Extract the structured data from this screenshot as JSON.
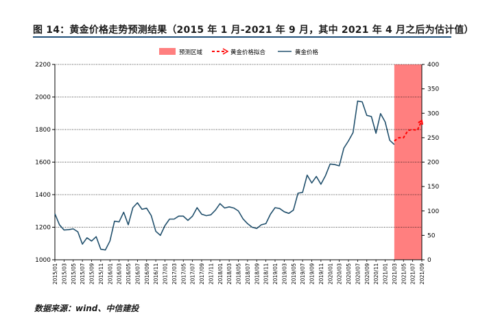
{
  "title": "图 14：黄金价格走势预测结果（2015 年 1 月-2021 年 9 月，其中 2021 年 4 月之后为估计值）",
  "source": "数据来源：wind、中信建投",
  "colors": {
    "series_line": "#1f4e6b",
    "forecast_line": "#ff0000",
    "forecast_region": "#ff7f7f",
    "title_rule": "#1f4e79"
  },
  "chart_data": {
    "type": "line",
    "legend": [
      "预测区域",
      "黄金价格拟合",
      "黄金价格"
    ],
    "legend_position": "top",
    "y_left": {
      "min": 1000,
      "max": 2200,
      "ticks": [
        1000,
        1200,
        1400,
        1600,
        1800,
        2000,
        2200
      ]
    },
    "y_right": {
      "min": 0,
      "max": 400,
      "ticks": [
        0,
        50,
        100,
        150,
        200,
        250,
        300,
        350,
        400
      ]
    },
    "grid": "dotted horizontal",
    "x_tick_labels": [
      "2015/01",
      "2015/03",
      "2015/05",
      "2015/07",
      "2015/09",
      "2015/11",
      "2016/01",
      "2016/03",
      "2016/05",
      "2016/07",
      "2016/09",
      "2016/11",
      "2017/01",
      "2017/03",
      "2017/05",
      "2017/07",
      "2017/09",
      "2017/11",
      "2018/01",
      "2018/03",
      "2018/05",
      "2018/07",
      "2018/09",
      "2018/11",
      "2019/01",
      "2019/03",
      "2019/05",
      "2019/07",
      "2019/09",
      "2019/11",
      "2020/01",
      "2020/03",
      "2020/05",
      "2020/07",
      "2020/09",
      "2020/11",
      "2021/01",
      "2021/03",
      "2021/05",
      "2021/07",
      "2021/09"
    ],
    "forecast_region": {
      "start": "2021/03",
      "end": "2021/09"
    },
    "series": [
      {
        "name": "黄金价格",
        "axis": "left",
        "x": [
          "2015/01",
          "2015/02",
          "2015/03",
          "2015/04",
          "2015/05",
          "2015/06",
          "2015/07",
          "2015/08",
          "2015/09",
          "2015/10",
          "2015/11",
          "2015/12",
          "2016/01",
          "2016/02",
          "2016/03",
          "2016/04",
          "2016/05",
          "2016/06",
          "2016/07",
          "2016/08",
          "2016/09",
          "2016/10",
          "2016/11",
          "2016/12",
          "2017/01",
          "2017/02",
          "2017/03",
          "2017/04",
          "2017/05",
          "2017/06",
          "2017/07",
          "2017/08",
          "2017/09",
          "2017/10",
          "2017/11",
          "2017/12",
          "2018/01",
          "2018/02",
          "2018/03",
          "2018/04",
          "2018/05",
          "2018/06",
          "2018/07",
          "2018/08",
          "2018/09",
          "2018/10",
          "2018/11",
          "2018/12",
          "2019/01",
          "2019/02",
          "2019/03",
          "2019/04",
          "2019/05",
          "2019/06",
          "2019/07",
          "2019/08",
          "2019/09",
          "2019/10",
          "2019/11",
          "2019/12",
          "2020/01",
          "2020/02",
          "2020/03",
          "2020/04",
          "2020/05",
          "2020/06",
          "2020/07",
          "2020/08",
          "2020/09",
          "2020/10",
          "2020/11",
          "2020/12",
          "2021/01",
          "2021/02",
          "2021/03"
        ],
        "values": [
          1283,
          1215,
          1183,
          1185,
          1190,
          1172,
          1096,
          1135,
          1115,
          1142,
          1065,
          1060,
          1115,
          1237,
          1233,
          1292,
          1215,
          1320,
          1350,
          1310,
          1317,
          1272,
          1175,
          1150,
          1210,
          1250,
          1250,
          1268,
          1268,
          1242,
          1268,
          1320,
          1280,
          1271,
          1276,
          1305,
          1345,
          1318,
          1325,
          1318,
          1300,
          1252,
          1222,
          1200,
          1192,
          1215,
          1222,
          1280,
          1320,
          1315,
          1295,
          1285,
          1305,
          1409,
          1414,
          1520,
          1472,
          1512,
          1464,
          1517,
          1588,
          1585,
          1577,
          1686,
          1730,
          1781,
          1975,
          1970,
          1887,
          1880,
          1777,
          1898,
          1847,
          1734,
          1708
        ]
      },
      {
        "name": "黄金价格拟合",
        "axis": "left",
        "x": [
          "2021/03",
          "2021/04",
          "2021/05",
          "2021/06",
          "2021/07",
          "2021/08",
          "2021/09"
        ],
        "values": [
          1730,
          1750,
          1750,
          1795,
          1800,
          1795,
          1855
        ]
      }
    ]
  }
}
